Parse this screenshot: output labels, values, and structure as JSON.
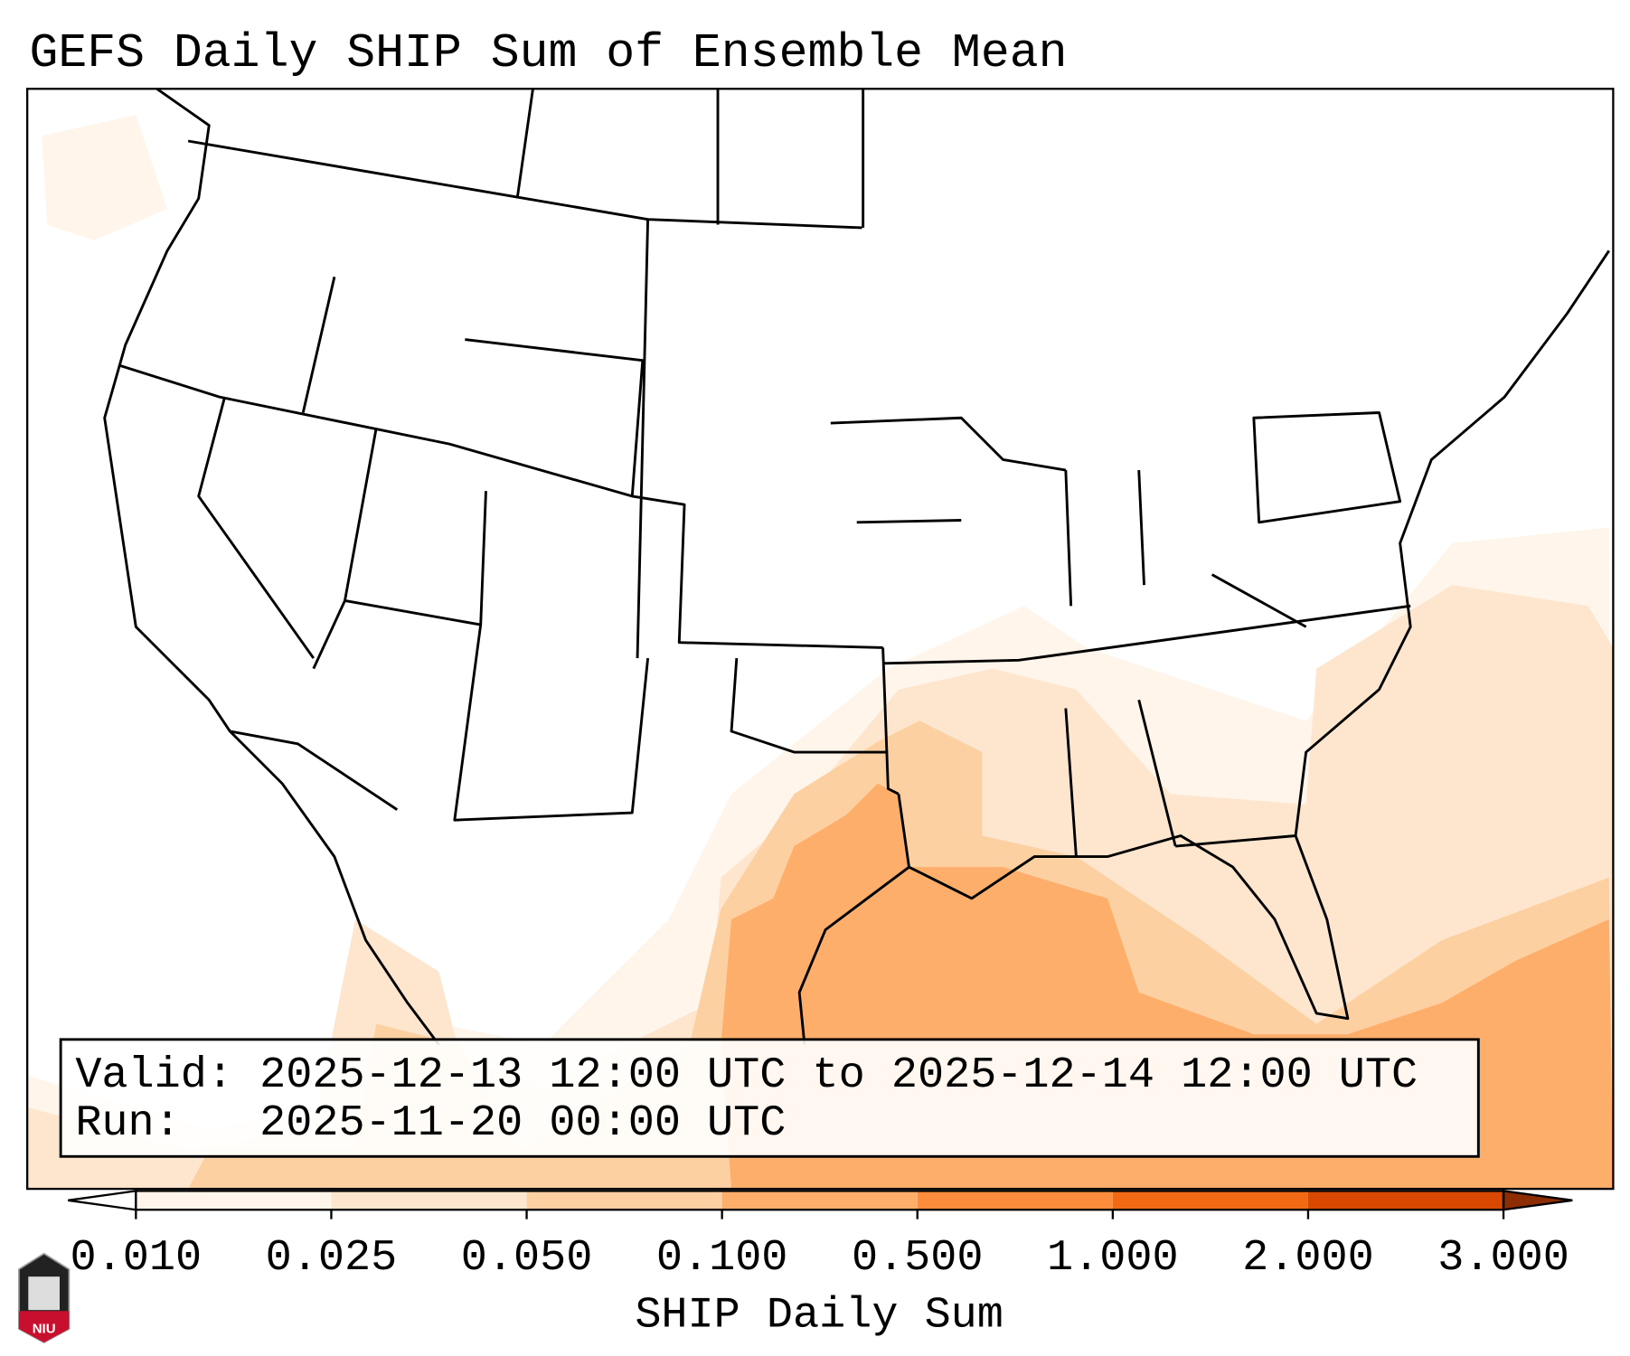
{
  "title": "GEFS Daily SHIP Sum of Ensemble Mean",
  "legend": {
    "valid_line": "Valid: 2025-12-13 12:00 UTC to 2025-12-14 12:00 UTC",
    "run_line": "Run:   2025-11-20 00:00 UTC"
  },
  "colorbar": {
    "label": "SHIP Daily Sum",
    "ticks": [
      "0.010",
      "0.025",
      "0.050",
      "0.100",
      "0.500",
      "1.000",
      "2.000",
      "3.000"
    ],
    "colors": [
      "#ffffff",
      "#fff5eb",
      "#fee6ce",
      "#fdd0a2",
      "#fdae6b",
      "#fd8d3c",
      "#f16913",
      "#d94801",
      "#8c2d04"
    ]
  },
  "logo": {
    "text": "NIU"
  }
}
